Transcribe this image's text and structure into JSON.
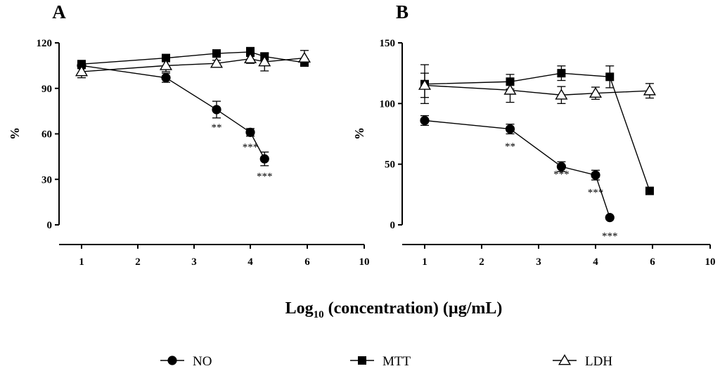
{
  "chart_data": [
    {
      "type": "line",
      "title": "A",
      "ylabel": "%",
      "xlabel": "Log₁₀ (concentration) (µg/mL)",
      "ylim": [
        0,
        120
      ],
      "yticks": [
        "0",
        "30",
        "60",
        "90",
        "120"
      ],
      "yticks_values": [
        0,
        30,
        60,
        90,
        120
      ],
      "xticks": [
        "1",
        "2",
        "3",
        "4",
        "6",
        "10"
      ],
      "series": [
        {
          "name": "NO",
          "marker": "circle",
          "points": [
            [
              1,
              105
            ],
            [
              2.5,
              97
            ],
            [
              3.4,
              76
            ],
            [
              4,
              61
            ],
            [
              4.5,
              43.5
            ]
          ],
          "errors": [
            2,
            3,
            5.5,
            2.5,
            4.5
          ]
        },
        {
          "name": "MTT",
          "marker": "square",
          "points": [
            [
              1,
              106
            ],
            [
              2.5,
              110
            ],
            [
              3.4,
              113
            ],
            [
              4,
              114
            ],
            [
              4.5,
              111
            ],
            [
              5.9,
              107
            ]
          ],
          "errors": [
            2,
            2,
            2,
            3,
            2,
            2
          ]
        },
        {
          "name": "LDH",
          "marker": "triangle-open",
          "points": [
            [
              1,
              101
            ],
            [
              2.5,
              105
            ],
            [
              3.4,
              106.5
            ],
            [
              4,
              109.5
            ],
            [
              4.5,
              107.5
            ],
            [
              5.9,
              110
            ]
          ],
          "errors": [
            4,
            4,
            2,
            3,
            6,
            5
          ]
        }
      ],
      "annotations": [
        {
          "text": "**",
          "x": 3.4,
          "y": 62
        },
        {
          "text": "***",
          "x": 4,
          "y": 49
        },
        {
          "text": "***",
          "x": 4.5,
          "y": 30
        }
      ]
    },
    {
      "type": "line",
      "title": "B",
      "ylabel": "%",
      "xlabel": "Log₁₀ (concentration) (µg/mL)",
      "ylim": [
        0,
        150
      ],
      "yticks": [
        "0",
        "50",
        "100",
        "150"
      ],
      "yticks_values": [
        0,
        50,
        100,
        150
      ],
      "xticks": [
        "1",
        "2",
        "3",
        "4",
        "6",
        "10"
      ],
      "series": [
        {
          "name": "NO",
          "marker": "circle",
          "points": [
            [
              1,
              86
            ],
            [
              2.5,
              79
            ],
            [
              3.4,
              48
            ],
            [
              4,
              41
            ],
            [
              4.5,
              6
            ]
          ],
          "errors": [
            4,
            4,
            4,
            4,
            0
          ]
        },
        {
          "name": "MTT",
          "marker": "square",
          "points": [
            [
              1,
              116
            ],
            [
              2.5,
              118
            ],
            [
              3.4,
              125
            ],
            [
              4.5,
              122
            ],
            [
              5.9,
              28
            ]
          ],
          "errors": [
            16,
            6,
            6,
            9,
            0
          ]
        },
        {
          "name": "LDH",
          "marker": "triangle-open",
          "points": [
            [
              1,
              115
            ],
            [
              2.5,
              111
            ],
            [
              3.4,
              107
            ],
            [
              4,
              108.5
            ],
            [
              5.9,
              110.5
            ]
          ],
          "errors": [
            10,
            10,
            7,
            5,
            6
          ]
        }
      ],
      "annotations": [
        {
          "text": "**",
          "x": 2.5,
          "y": 62
        },
        {
          "text": "***",
          "x": 3.4,
          "y": 39
        },
        {
          "text": "***",
          "x": 4,
          "y": 24
        },
        {
          "text": "***",
          "x": 4.5,
          "y": -12
        }
      ]
    }
  ],
  "legend": [
    {
      "label": "NO",
      "marker": "circle"
    },
    {
      "label": "MTT",
      "marker": "square"
    },
    {
      "label": "LDH",
      "marker": "triangle-open"
    }
  ],
  "xlabel_parts": {
    "main": "Log",
    "sub": "10",
    "rest": " (concentration) (µg/mL)"
  }
}
